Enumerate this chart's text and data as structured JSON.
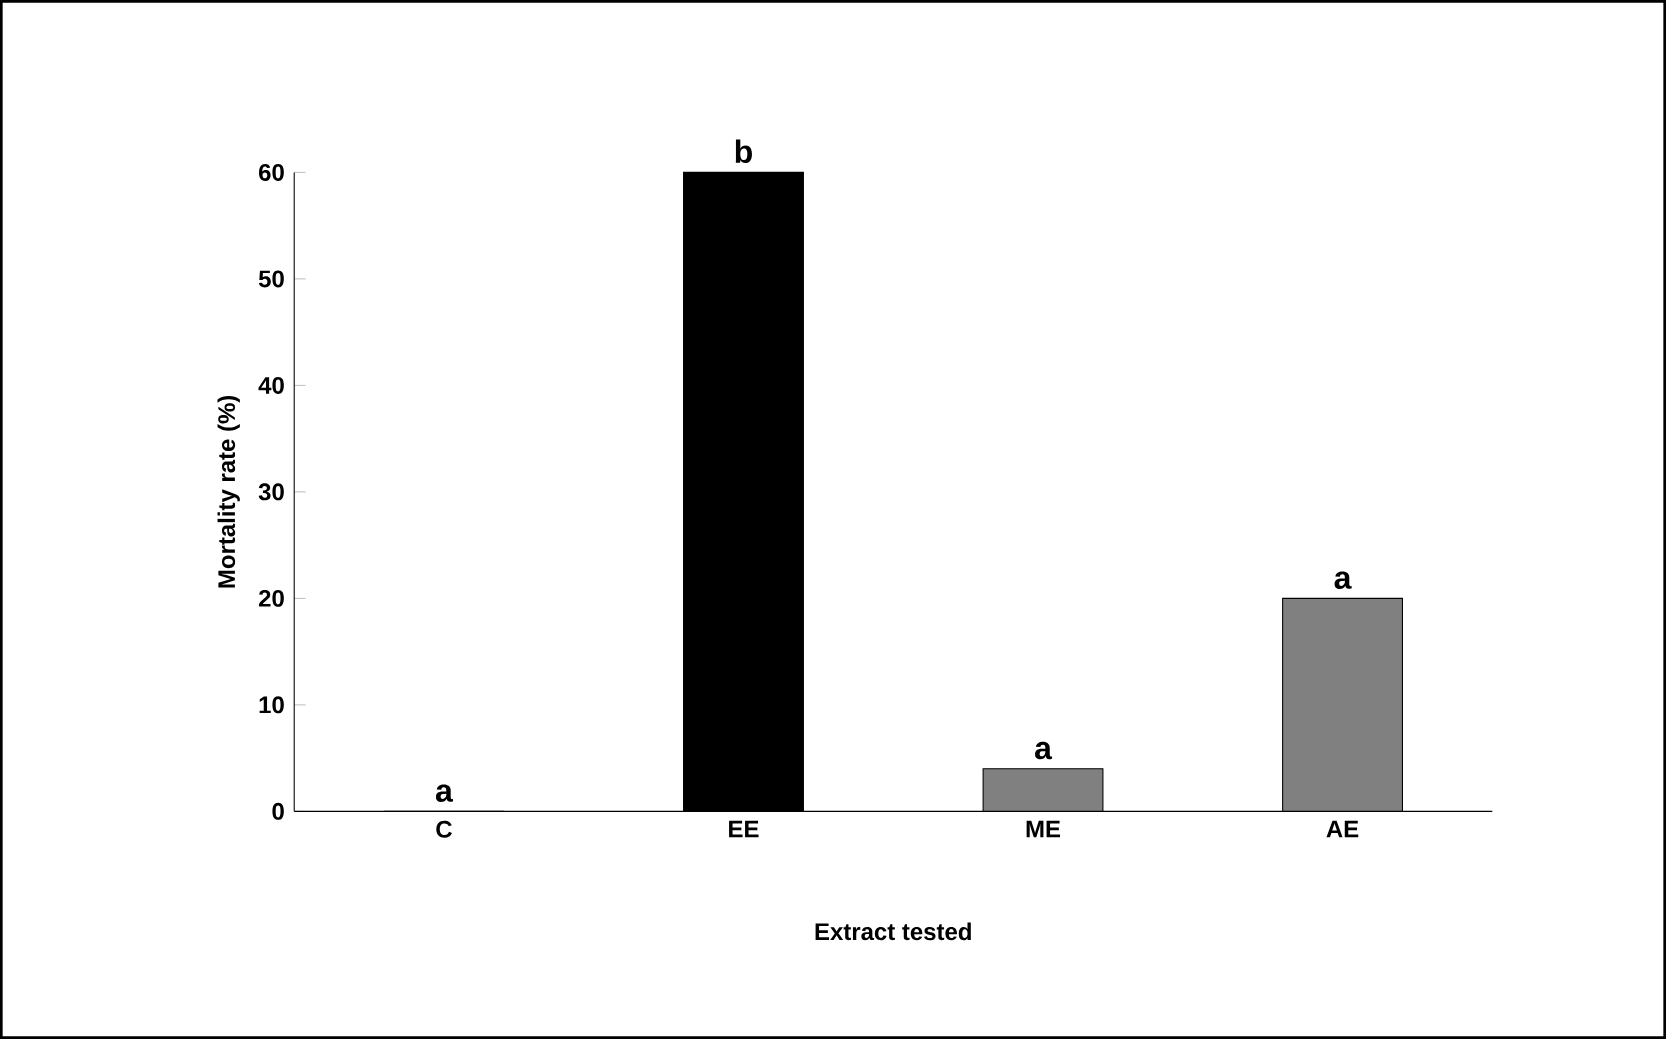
{
  "chart_data": {
    "type": "bar",
    "xlabel": "Extract tested",
    "ylabel": "Mortality rate (%)",
    "categories": [
      "C",
      "EE",
      "ME",
      "AE"
    ],
    "values": [
      0,
      60,
      4,
      20
    ],
    "colors": [
      "#808080",
      "#000000",
      "#808080",
      "#808080"
    ],
    "ylim": [
      0,
      60
    ],
    "yticks": [
      0,
      10,
      20,
      30,
      40,
      50,
      60
    ],
    "grid": false,
    "annotations": [
      {
        "text": "a",
        "x": "C",
        "y": 0
      },
      {
        "text": "b",
        "x": "EE",
        "y": 60
      },
      {
        "text": "a",
        "x": "ME",
        "y": 4
      },
      {
        "text": "a",
        "x": "AE",
        "y": 20
      }
    ]
  }
}
